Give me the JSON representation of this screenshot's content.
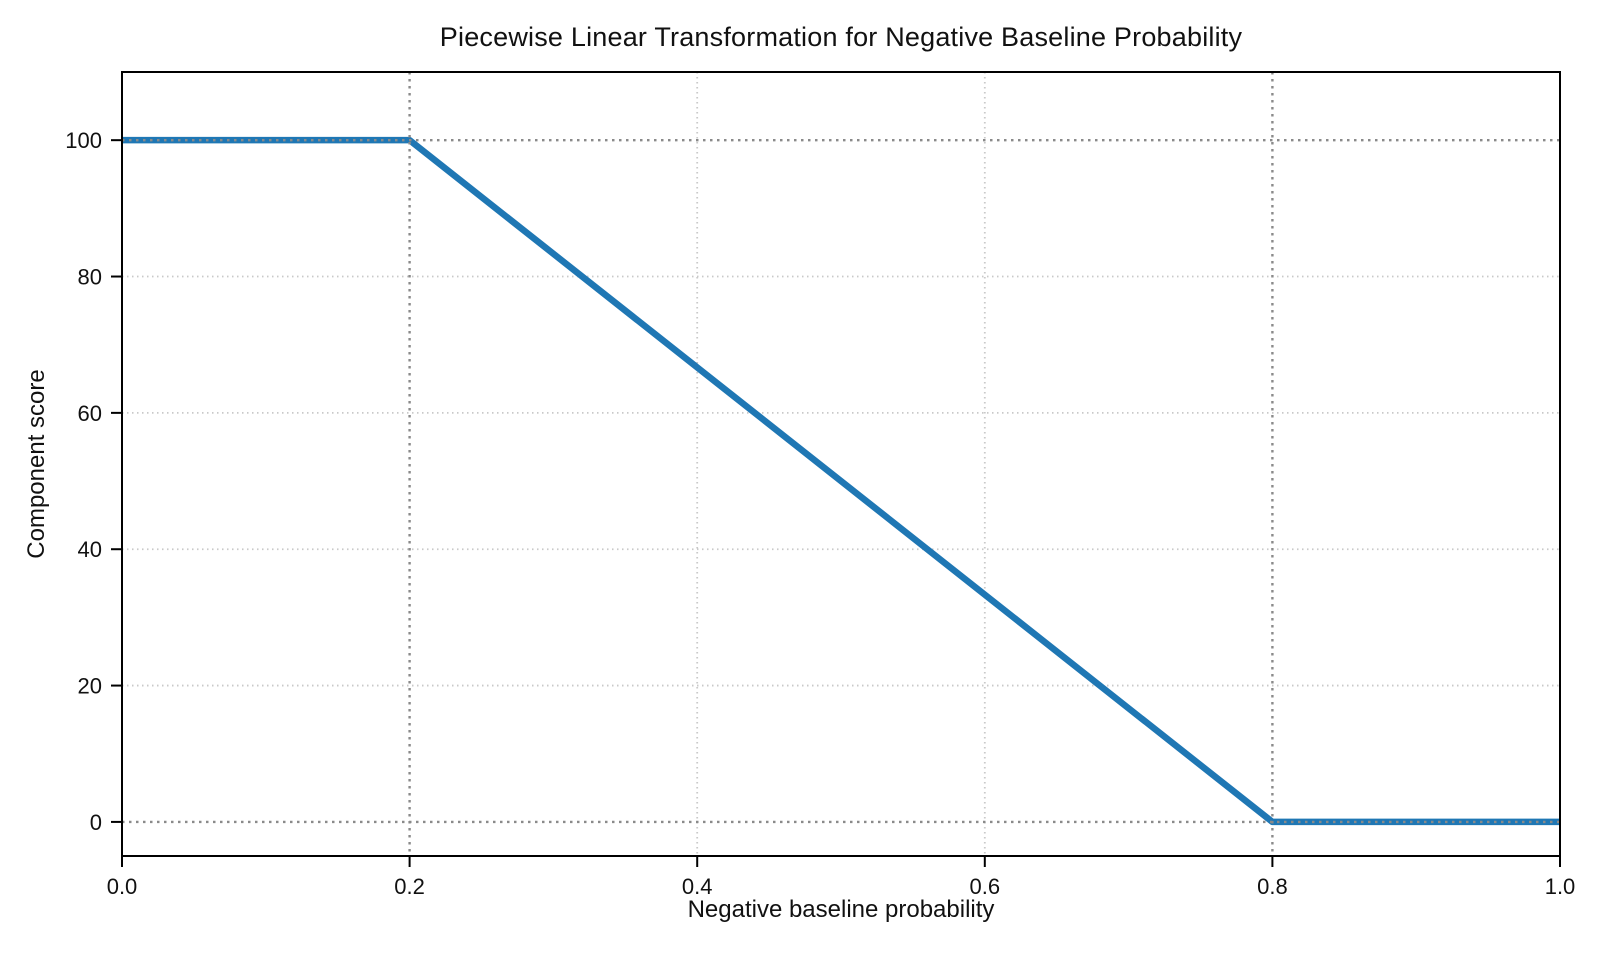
{
  "figure": {
    "background": "#ffffff",
    "text_color": "#111111",
    "axis_color": "#000000"
  },
  "chart_data": {
    "type": "line",
    "title": "Piecewise Linear Transformation for Negative Baseline Probability",
    "xlabel": "Negative baseline probability",
    "ylabel": "Component score",
    "xlim": [
      0,
      1
    ],
    "ylim": [
      -5,
      110
    ],
    "x_ticks": [
      {
        "value": 0.0,
        "label": "0.0"
      },
      {
        "value": 0.2,
        "label": "0.2"
      },
      {
        "value": 0.4,
        "label": "0.4"
      },
      {
        "value": 0.6,
        "label": "0.6"
      },
      {
        "value": 0.8,
        "label": "0.8"
      },
      {
        "value": 1.0,
        "label": "1.0"
      }
    ],
    "y_ticks": [
      {
        "value": 0,
        "label": "0"
      },
      {
        "value": 20,
        "label": "20"
      },
      {
        "value": 40,
        "label": "40"
      },
      {
        "value": 60,
        "label": "60"
      },
      {
        "value": 80,
        "label": "80"
      },
      {
        "value": 100,
        "label": "100"
      }
    ],
    "grid": {
      "show": true,
      "style": "dotted",
      "color": "#c9c9c9"
    },
    "reference_lines": {
      "style": "dotted",
      "color": "#8a8a8a",
      "vertical_x": [
        0.2,
        0.8
      ],
      "horizontal_y": [
        100,
        0
      ]
    },
    "legend": null,
    "series": [
      {
        "name": "Component score",
        "color": "#1f77b4",
        "line_width": 6.5,
        "points": [
          [
            0.0,
            100
          ],
          [
            0.2,
            100
          ],
          [
            0.8,
            0
          ],
          [
            1.0,
            0
          ]
        ]
      }
    ]
  }
}
